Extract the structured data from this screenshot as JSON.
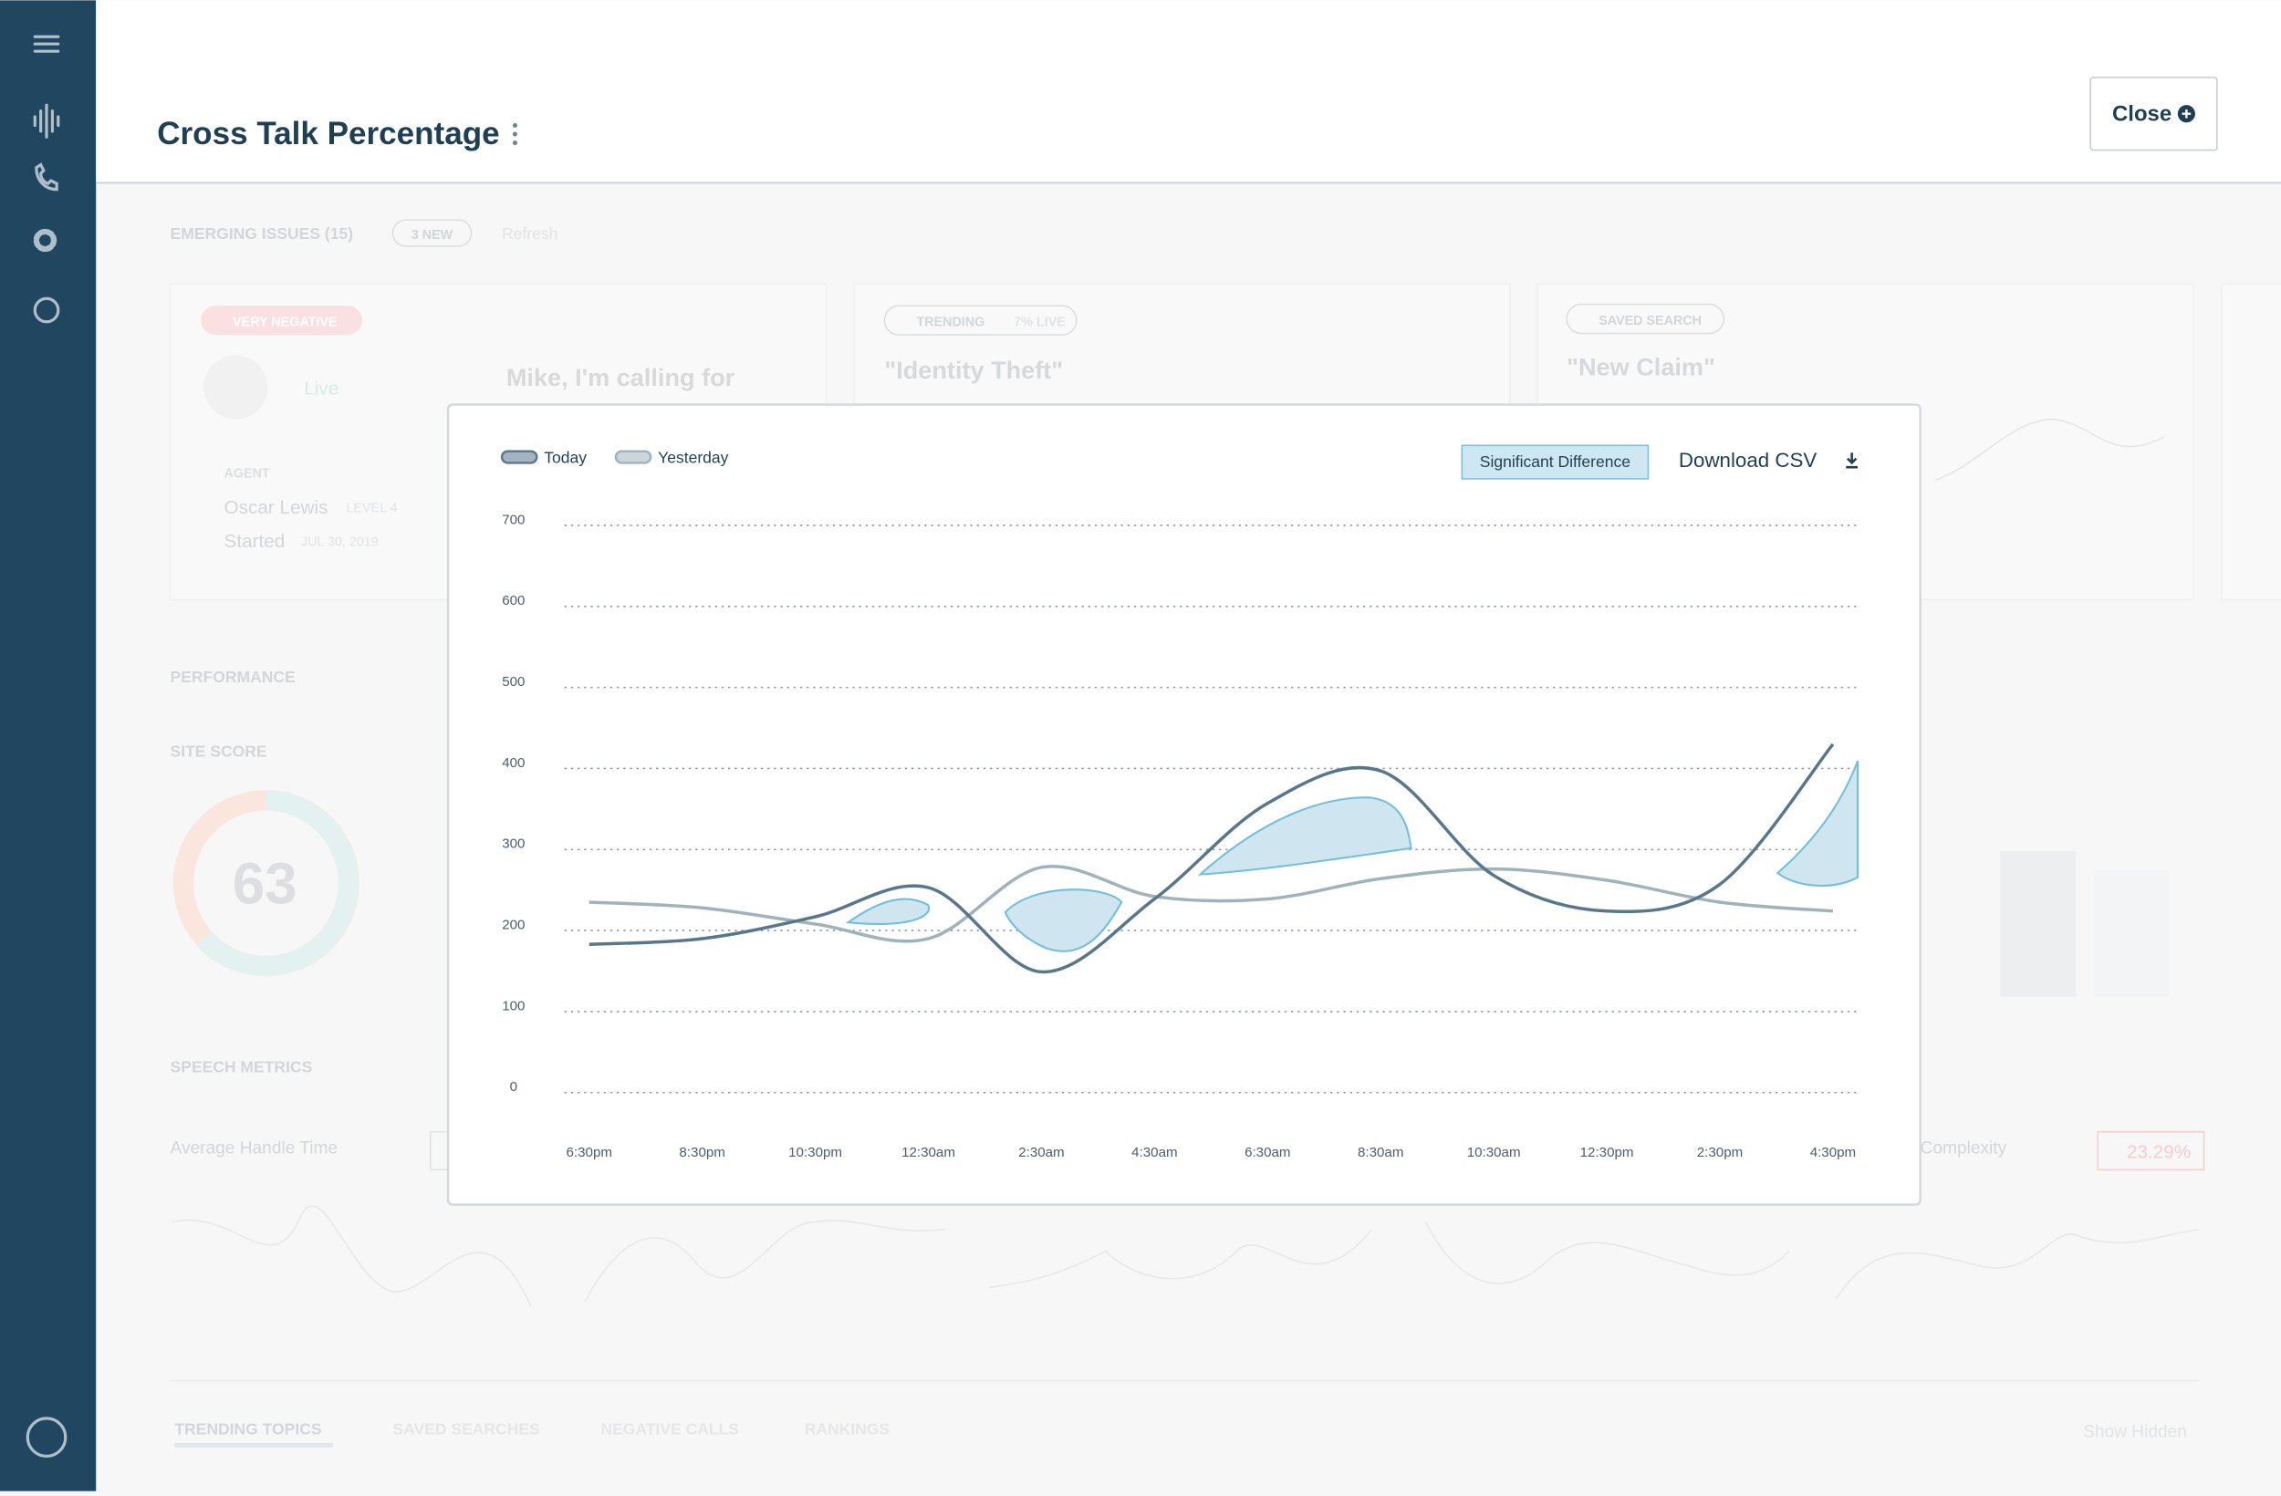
{
  "header": {
    "title": "Cross Talk Percentage",
    "close": "Close"
  },
  "background": {
    "emerging_issues": "EMERGING ISSUES (15)",
    "new_badge": "3 NEW",
    "refresh": "Refresh",
    "cards": [
      {
        "tag": "VERY NEGATIVE",
        "status": "Live",
        "quote": "Mike, I'm calling for",
        "agent_label": "AGENT",
        "agent": "Oscar Lewis",
        "level": "LEVEL 4",
        "started": "Started",
        "date": "JUL 30, 2019"
      },
      {
        "tag": "TRENDING",
        "live": "7% LIVE",
        "quote": "\"Identity Theft\""
      },
      {
        "tag": "SAVED SEARCH",
        "quote": "\"New Claim\""
      }
    ],
    "performance": "PERFORMANCE",
    "site_score": "SITE SCORE",
    "score": "63",
    "speech_metrics": "SPEECH METRICS",
    "average_handle_time": "Average Handle Time",
    "complexity": "Complexity",
    "complexity_change": "23.29%",
    "tabs": [
      "TRENDING TOPICS",
      "SAVED SEARCHES",
      "NEGATIVE CALLS",
      "RANKINGS"
    ],
    "show_hidden": "Show Hidden"
  },
  "chart_data": {
    "type": "line",
    "categories": [
      "6:30pm",
      "8:30pm",
      "10:30pm",
      "12:30am",
      "2:30am",
      "4:30am",
      "6:30am",
      "8:30am",
      "10:30am",
      "12:30pm",
      "2:30pm",
      "4:30pm"
    ],
    "series": [
      {
        "name": "Today",
        "color": "#58778c",
        "values": [
          183,
          190,
          217,
          253,
          149,
          239,
          357,
          397,
          268,
          224,
          257,
          430
        ]
      },
      {
        "name": "Yesterday",
        "color": "#a0b3bc",
        "values": [
          235,
          228,
          208,
          190,
          278,
          242,
          239,
          264,
          276,
          262,
          235,
          224
        ]
      }
    ],
    "ylim": [
      0,
      700
    ],
    "yticks": [
      0,
      100,
      200,
      300,
      400,
      500,
      600,
      700
    ],
    "grid": true,
    "annotation": "Significant Difference",
    "download": "Download CSV"
  }
}
